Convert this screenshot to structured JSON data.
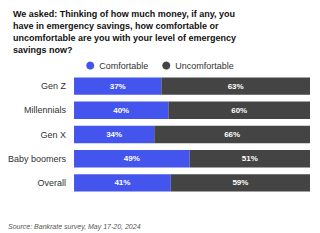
{
  "chart_data": {
    "type": "bar",
    "title": "We asked: Thinking of how much money, if any, you\nhave in emergency savings, how comfortable or\nuncomfortable are you with your level of emergency\nsavings now?",
    "categories": [
      "Gen Z",
      "Millennials",
      "Gen X",
      "Baby boomers",
      "Overall"
    ],
    "series": [
      {
        "name": "Comfortable",
        "color": "#4455EE",
        "values": [
          37,
          40,
          34,
          49,
          41
        ],
        "value_labels": [
          "37%",
          "40%",
          "34%",
          "49%",
          "41%"
        ]
      },
      {
        "name": "Uncomfortable",
        "color": "#444444",
        "values": [
          63,
          60,
          66,
          51,
          59
        ],
        "value_labels": [
          "63%",
          "60%",
          "66%",
          "51%",
          "59%"
        ]
      }
    ],
    "orientation": "horizontal",
    "stacked": true,
    "data_labels": true,
    "xlim": [
      0,
      100
    ],
    "tick_labels": "y",
    "grid": false,
    "legend": "top",
    "annotations": [
      "Source: Bankrate survey, May 17-20, 2024"
    ]
  }
}
